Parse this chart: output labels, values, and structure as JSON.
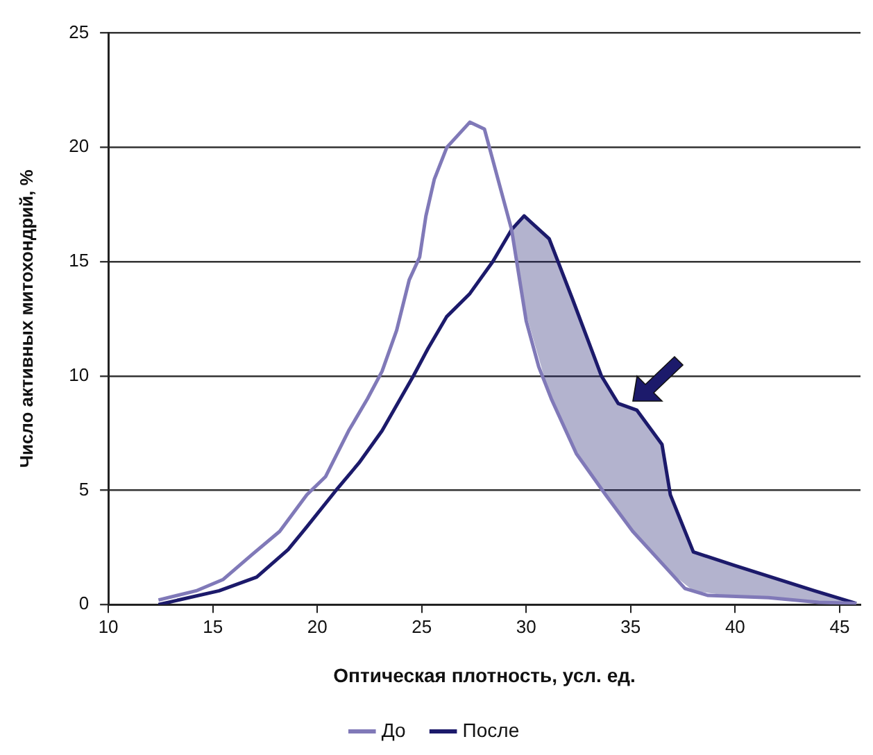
{
  "chart_data": {
    "type": "line",
    "xlabel": "Оптическая плотность, усл. ед.",
    "ylabel": "Число активных митохондрий, %",
    "xlim": [
      10,
      46
    ],
    "xticks": [
      10,
      15,
      20,
      25,
      30,
      35,
      40,
      45
    ],
    "ylim": [
      0,
      25
    ],
    "yticks": [
      0,
      5,
      10,
      15,
      20,
      25
    ],
    "grid": "y",
    "legend": "bottom",
    "marker": "none",
    "line_style": "solid",
    "series": [
      {
        "name": "До",
        "color": "#8079b8",
        "x": [
          12.4,
          14.2,
          15.5,
          16.9,
          18.2,
          19.5,
          20.4,
          21.5,
          22.4,
          23.1,
          23.8,
          24.4,
          24.9,
          25.2,
          25.6,
          26.2,
          27.3,
          28.0,
          29.3,
          30.0,
          30.6,
          31.2,
          32.4,
          33.8,
          35.1,
          36.5,
          37.6,
          38.7,
          41.6,
          44.0,
          45.8
        ],
        "values": [
          0.2,
          0.6,
          1.1,
          2.2,
          3.2,
          4.8,
          5.6,
          7.6,
          9.0,
          10.2,
          12.0,
          14.2,
          15.2,
          17.0,
          18.6,
          20.0,
          21.1,
          20.8,
          16.4,
          12.4,
          10.4,
          9.0,
          6.6,
          4.8,
          3.2,
          1.8,
          0.7,
          0.4,
          0.3,
          0.1,
          0.05
        ]
      },
      {
        "name": "После",
        "color": "#1c1a6b",
        "x": [
          12.4,
          15.3,
          17.1,
          18.6,
          19.5,
          20.9,
          22.0,
          23.1,
          24.6,
          25.3,
          26.2,
          27.3,
          28.4,
          29.3,
          29.9,
          31.1,
          32.2,
          33.6,
          34.4,
          35.3,
          36.5,
          36.9,
          38.0,
          40.0,
          43.8,
          45.8
        ],
        "values": [
          0.0,
          0.6,
          1.2,
          2.4,
          3.4,
          5.0,
          6.2,
          7.6,
          10.0,
          11.2,
          12.6,
          13.6,
          15.0,
          16.4,
          17.0,
          16.0,
          13.4,
          10.0,
          8.8,
          8.5,
          7.0,
          4.8,
          2.3,
          1.7,
          0.6,
          0.05
        ],
        "lower": [
          null,
          null,
          null,
          null,
          null,
          null,
          null,
          null,
          null,
          null,
          null,
          null,
          null,
          16.4,
          13.0,
          9.2,
          7.0,
          5.1,
          4.1,
          3.0,
          1.8,
          1.4,
          0.6,
          0.35,
          0.1,
          0.05
        ],
        "upper": [
          null,
          null,
          null,
          null,
          null,
          null,
          null,
          null,
          null,
          null,
          null,
          null,
          null,
          16.4,
          17.0,
          16.0,
          13.4,
          10.0,
          8.8,
          8.5,
          7.0,
          4.8,
          2.3,
          1.7,
          0.6,
          0.05
        ]
      }
    ]
  }
}
